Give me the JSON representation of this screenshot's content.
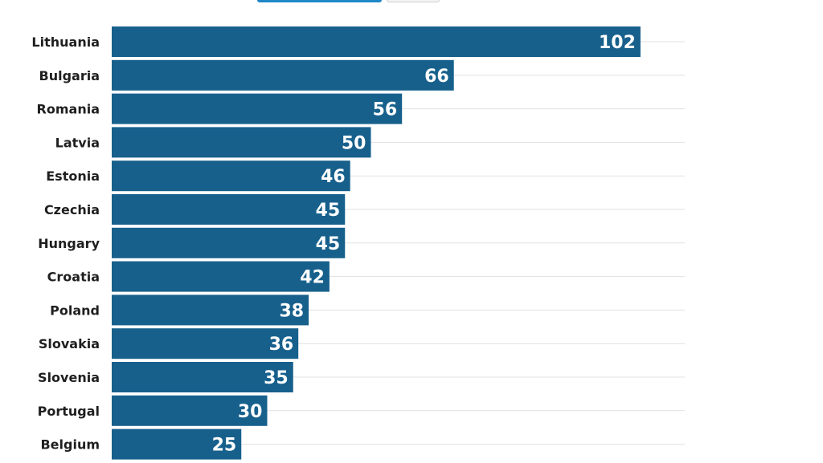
{
  "colors": {
    "bar": "#17608c",
    "gridline": "#e1e1e1",
    "label_text": "#1f1f1f",
    "value_text": "#ffffff",
    "tab_active": "#1f86c7"
  },
  "chart_data": {
    "type": "bar",
    "orientation": "horizontal",
    "categories": [
      "Lithuania",
      "Bulgaria",
      "Romania",
      "Latvia",
      "Estonia",
      "Czechia",
      "Hungary",
      "Croatia",
      "Poland",
      "Slovakia",
      "Slovenia",
      "Portugal",
      "Belgium"
    ],
    "values": [
      102,
      66,
      56,
      50,
      46,
      45,
      45,
      42,
      38,
      36,
      35,
      30,
      25
    ],
    "title": "",
    "xlabel": "",
    "ylabel": "",
    "xlim": [
      0,
      110
    ],
    "grid": true,
    "legend": "none",
    "data_labels": true
  }
}
